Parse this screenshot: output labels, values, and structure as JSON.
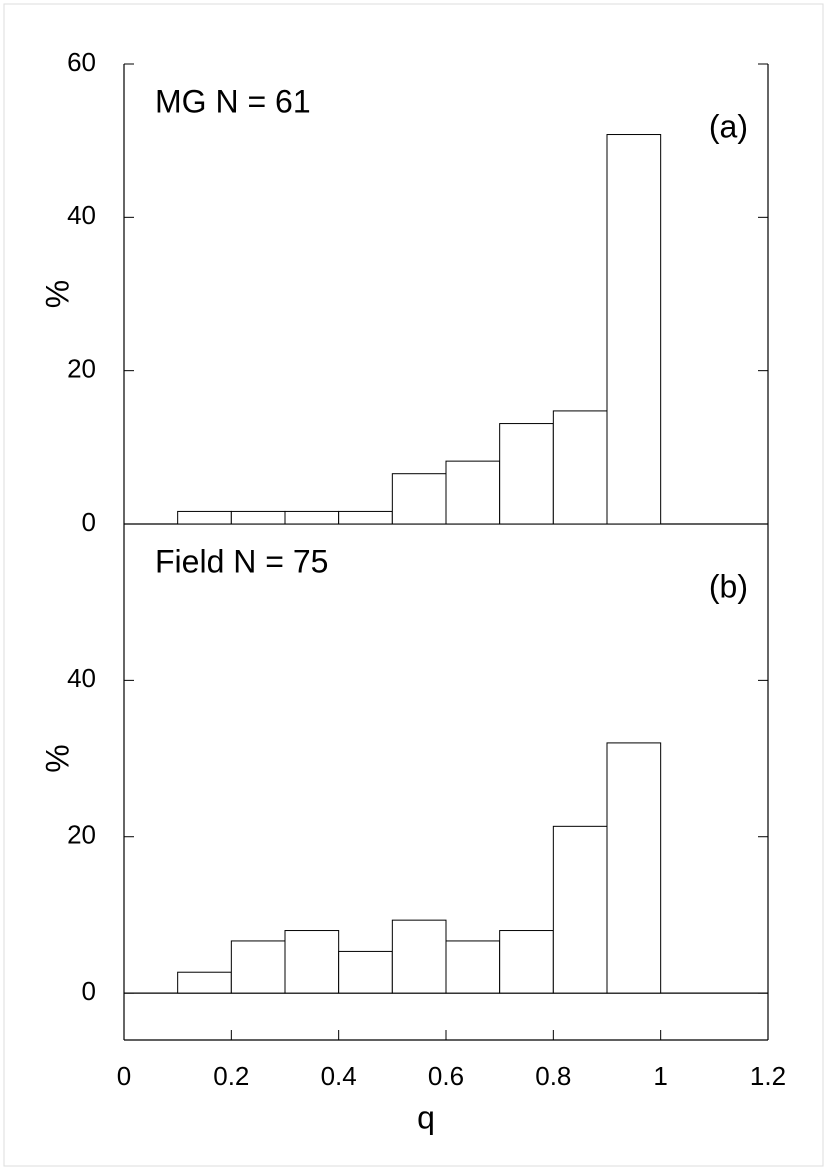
{
  "chart_data": [
    {
      "type": "histogram",
      "title": "MG  N = 61",
      "panel_label": "(a)",
      "ylabel": "%",
      "bins": [
        0.1,
        0.2,
        0.3,
        0.4,
        0.5,
        0.6,
        0.7,
        0.8,
        0.9,
        1.0
      ],
      "values": [
        1.64,
        1.64,
        1.64,
        1.64,
        6.56,
        8.2,
        13.1,
        14.75,
        50.8
      ],
      "color": "#ffffff",
      "xlim": [
        0,
        1.2
      ],
      "ylim": [
        0,
        60
      ],
      "yticks": [
        0,
        20,
        40,
        60
      ]
    },
    {
      "type": "histogram",
      "title": "Field N = 75",
      "panel_label": "(b)",
      "ylabel": "%",
      "xlabel": "q",
      "bins": [
        0.1,
        0.2,
        0.3,
        0.4,
        0.5,
        0.6,
        0.7,
        0.8,
        0.9,
        1.0
      ],
      "values": [
        2.67,
        6.67,
        8,
        5.33,
        9.33,
        6.67,
        8,
        21.33,
        32
      ],
      "color": "#ffffff",
      "xlim": [
        0,
        1.2
      ],
      "ylim": [
        -6,
        60
      ],
      "yticks": [
        0,
        20,
        40
      ],
      "xticks": [
        0,
        0.2,
        0.4,
        0.6,
        0.8,
        1,
        1.2
      ]
    }
  ]
}
